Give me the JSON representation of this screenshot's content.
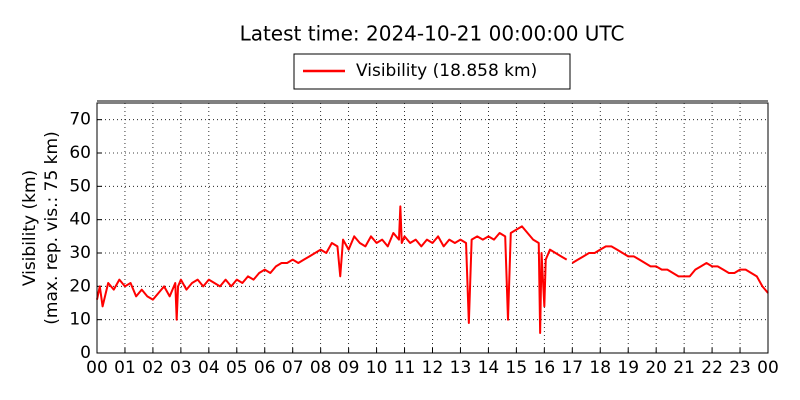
{
  "chart_data": {
    "type": "line",
    "title": "Latest time: 2024-10-21 00:00:00 UTC",
    "ylabel": [
      "Visibility (km)",
      "(max. rep. vis.: 75 km)"
    ],
    "xlim": [
      0,
      24
    ],
    "xticks": [
      {
        "value": 0,
        "label": "00"
      },
      {
        "value": 1,
        "label": "01"
      },
      {
        "value": 2,
        "label": "02"
      },
      {
        "value": 3,
        "label": "03"
      },
      {
        "value": 4,
        "label": "04"
      },
      {
        "value": 5,
        "label": "05"
      },
      {
        "value": 6,
        "label": "06"
      },
      {
        "value": 7,
        "label": "07"
      },
      {
        "value": 8,
        "label": "08"
      },
      {
        "value": 9,
        "label": "09"
      },
      {
        "value": 10,
        "label": "10"
      },
      {
        "value": 11,
        "label": "11"
      },
      {
        "value": 12,
        "label": "12"
      },
      {
        "value": 13,
        "label": "13"
      },
      {
        "value": 14,
        "label": "14"
      },
      {
        "value": 15,
        "label": "15"
      },
      {
        "value": 16,
        "label": "16"
      },
      {
        "value": 17,
        "label": "17"
      },
      {
        "value": 18,
        "label": "18"
      },
      {
        "value": 19,
        "label": "19"
      },
      {
        "value": 20,
        "label": "20"
      },
      {
        "value": 21,
        "label": "21"
      },
      {
        "value": 22,
        "label": "22"
      },
      {
        "value": 23,
        "label": "23"
      },
      {
        "value": 24,
        "label": "00"
      }
    ],
    "ylim": [
      0,
      75
    ],
    "yticks": [
      0,
      10,
      20,
      30,
      40,
      50,
      60,
      70
    ],
    "grid": true,
    "legend": "top",
    "x": [
      0,
      0.1,
      0.2,
      0.4,
      0.6,
      0.8,
      1.0,
      1.2,
      1.4,
      1.6,
      1.8,
      2.0,
      2.2,
      2.4,
      2.6,
      2.8,
      2.85,
      2.9,
      3.0,
      3.2,
      3.4,
      3.6,
      3.8,
      4.0,
      4.2,
      4.4,
      4.6,
      4.8,
      5.0,
      5.2,
      5.4,
      5.6,
      5.8,
      6.0,
      6.2,
      6.4,
      6.6,
      6.8,
      7.0,
      7.2,
      7.4,
      7.6,
      7.8,
      8.0,
      8.2,
      8.4,
      8.6,
      8.7,
      8.8,
      9.0,
      9.2,
      9.4,
      9.6,
      9.8,
      10.0,
      10.2,
      10.4,
      10.6,
      10.8,
      10.85,
      10.9,
      11.0,
      11.2,
      11.4,
      11.6,
      11.8,
      12.0,
      12.2,
      12.4,
      12.6,
      12.8,
      13.0,
      13.2,
      13.3,
      13.4,
      13.6,
      13.8,
      14.0,
      14.2,
      14.4,
      14.6,
      14.7,
      14.8,
      15.0,
      15.2,
      15.4,
      15.6,
      15.8,
      15.85,
      15.9,
      16.0,
      16.05,
      16.2,
      16.4,
      16.6,
      16.8,
      16.9,
      17.0,
      17.2,
      17.4,
      17.6,
      17.8,
      18.0,
      18.2,
      18.4,
      18.6,
      18.8,
      19.0,
      19.2,
      19.4,
      19.6,
      19.8,
      20.0,
      20.2,
      20.4,
      20.6,
      20.8,
      21.0,
      21.2,
      21.4,
      21.6,
      21.8,
      22.0,
      22.2,
      22.4,
      22.6,
      22.8,
      23.0,
      23.2,
      23.4,
      23.6,
      23.8,
      24.0
    ],
    "series": [
      {
        "name": "Visibility (18.858 km)",
        "color": "#ff0000",
        "values": [
          16,
          20,
          14,
          21,
          19,
          22,
          20,
          21,
          17,
          19,
          17,
          16,
          18,
          20,
          17,
          21,
          10,
          20,
          22,
          19,
          21,
          22,
          20,
          22,
          21,
          20,
          22,
          20,
          22,
          21,
          23,
          22,
          24,
          25,
          24,
          26,
          27,
          27,
          28,
          27,
          28,
          29,
          30,
          31,
          30,
          33,
          32,
          23,
          34,
          31,
          35,
          33,
          32,
          35,
          33,
          34,
          32,
          36,
          34,
          44,
          33,
          35,
          33,
          34,
          32,
          34,
          33,
          35,
          32,
          34,
          33,
          34,
          33,
          9,
          34,
          35,
          34,
          35,
          34,
          36,
          35,
          10,
          36,
          37,
          38,
          36,
          34,
          33,
          6,
          30,
          14,
          28,
          31,
          30,
          29,
          28,
          null,
          27,
          28,
          29,
          30,
          30,
          31,
          32,
          32,
          31,
          30,
          29,
          29,
          28,
          27,
          26,
          26,
          25,
          25,
          24,
          23,
          23,
          23,
          25,
          26,
          27,
          26,
          26,
          25,
          24,
          24,
          25,
          25,
          24,
          23,
          20,
          18
        ]
      }
    ]
  }
}
